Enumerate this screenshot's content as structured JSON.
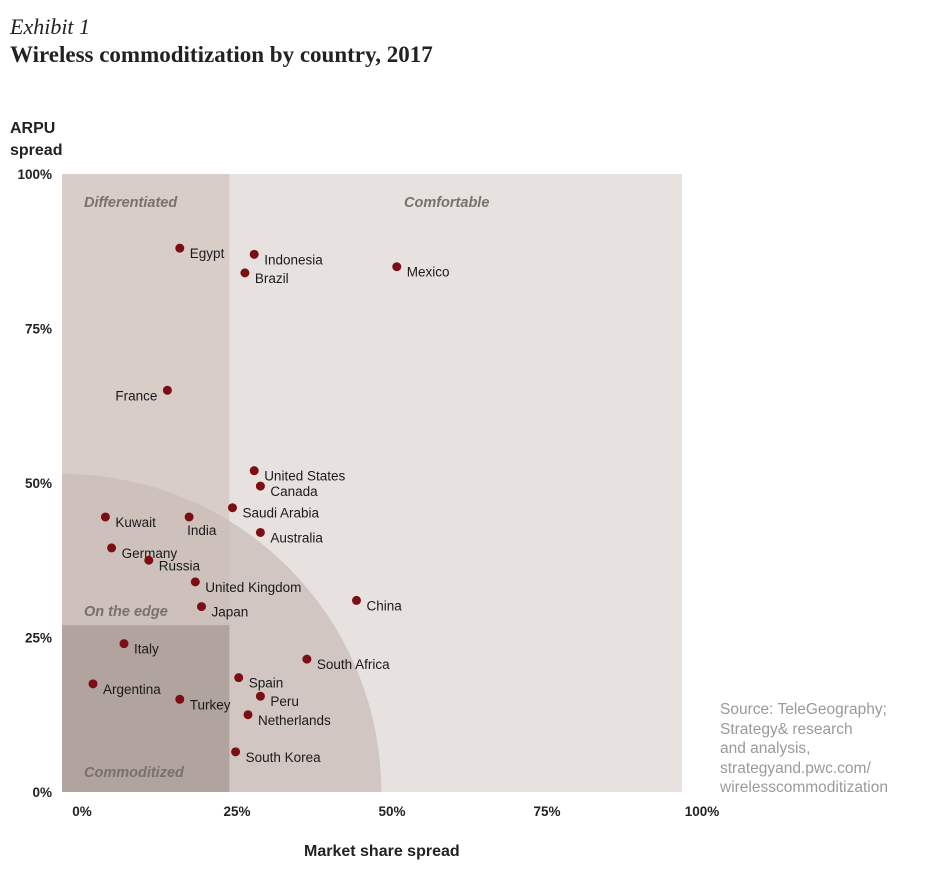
{
  "header": {
    "exhibit": "Exhibit 1",
    "title": "Wireless commoditization by country, 2017"
  },
  "source": {
    "lines": [
      "Source: TeleGeography;",
      "Strategy& research",
      "and analysis,",
      "strategyand.pwc.com/",
      "wirelesscommoditization"
    ]
  },
  "colors": {
    "point": "#7a0e14",
    "comfortable": "#e7e2e0",
    "differentiated": "#d9cdc8",
    "arc": "#c9bcb7",
    "commoditized": "#b1a39e"
  },
  "chart_data": {
    "type": "scatter",
    "ylabel_lines": [
      "ARPU",
      "spread"
    ],
    "xlabel": "Market share spread",
    "xlim": [
      0,
      100
    ],
    "ylim": [
      0,
      100
    ],
    "x_ticks": [
      0,
      25,
      50,
      75,
      100
    ],
    "y_ticks": [
      0,
      25,
      50,
      75,
      100
    ],
    "x_tick_labels": [
      "0%",
      "25%",
      "50%",
      "75%",
      "100%"
    ],
    "y_tick_labels": [
      "0%",
      "25%",
      "50%",
      "75%",
      "100%"
    ],
    "regions": [
      "Differentiated",
      "Comfortable",
      "On the edge",
      "Commoditized"
    ],
    "region_bounds": {
      "split_x": 27,
      "split_y": 27,
      "edge_radius": 51.5
    },
    "points": [
      {
        "label": "Egypt",
        "x": 19,
        "y": 88,
        "anchor": "right"
      },
      {
        "label": "Indonesia",
        "x": 31,
        "y": 87,
        "anchor": "right"
      },
      {
        "label": "Brazil",
        "x": 29.5,
        "y": 84,
        "anchor": "right"
      },
      {
        "label": "Mexico",
        "x": 54,
        "y": 85,
        "anchor": "right"
      },
      {
        "label": "France",
        "x": 17,
        "y": 65,
        "anchor": "left"
      },
      {
        "label": "United States",
        "x": 31,
        "y": 52,
        "anchor": "right"
      },
      {
        "label": "Canada",
        "x": 32,
        "y": 49.5,
        "anchor": "right"
      },
      {
        "label": "Saudi Arabia",
        "x": 27.5,
        "y": 46,
        "anchor": "right"
      },
      {
        "label": "Kuwait",
        "x": 7,
        "y": 44.5,
        "anchor": "right"
      },
      {
        "label": "India",
        "x": 20.5,
        "y": 44.5,
        "anchor": "below"
      },
      {
        "label": "Australia",
        "x": 32,
        "y": 42,
        "anchor": "right"
      },
      {
        "label": "Germany",
        "x": 8,
        "y": 39.5,
        "anchor": "right"
      },
      {
        "label": "Russia",
        "x": 14,
        "y": 37.5,
        "anchor": "right"
      },
      {
        "label": "United Kingdom",
        "x": 21.5,
        "y": 34,
        "anchor": "right"
      },
      {
        "label": "China",
        "x": 47.5,
        "y": 31,
        "anchor": "right"
      },
      {
        "label": "Japan",
        "x": 22.5,
        "y": 30,
        "anchor": "right"
      },
      {
        "label": "Italy",
        "x": 10,
        "y": 24,
        "anchor": "right"
      },
      {
        "label": "South Africa",
        "x": 39.5,
        "y": 21.5,
        "anchor": "right"
      },
      {
        "label": "Spain",
        "x": 28.5,
        "y": 18.5,
        "anchor": "right"
      },
      {
        "label": "Argentina",
        "x": 5,
        "y": 17.5,
        "anchor": "right"
      },
      {
        "label": "Peru",
        "x": 32,
        "y": 15.5,
        "anchor": "right"
      },
      {
        "label": "Turkey",
        "x": 19,
        "y": 15,
        "anchor": "right"
      },
      {
        "label": "Netherlands",
        "x": 30,
        "y": 12.5,
        "anchor": "right"
      },
      {
        "label": "South Korea",
        "x": 28,
        "y": 6.5,
        "anchor": "right"
      }
    ]
  }
}
